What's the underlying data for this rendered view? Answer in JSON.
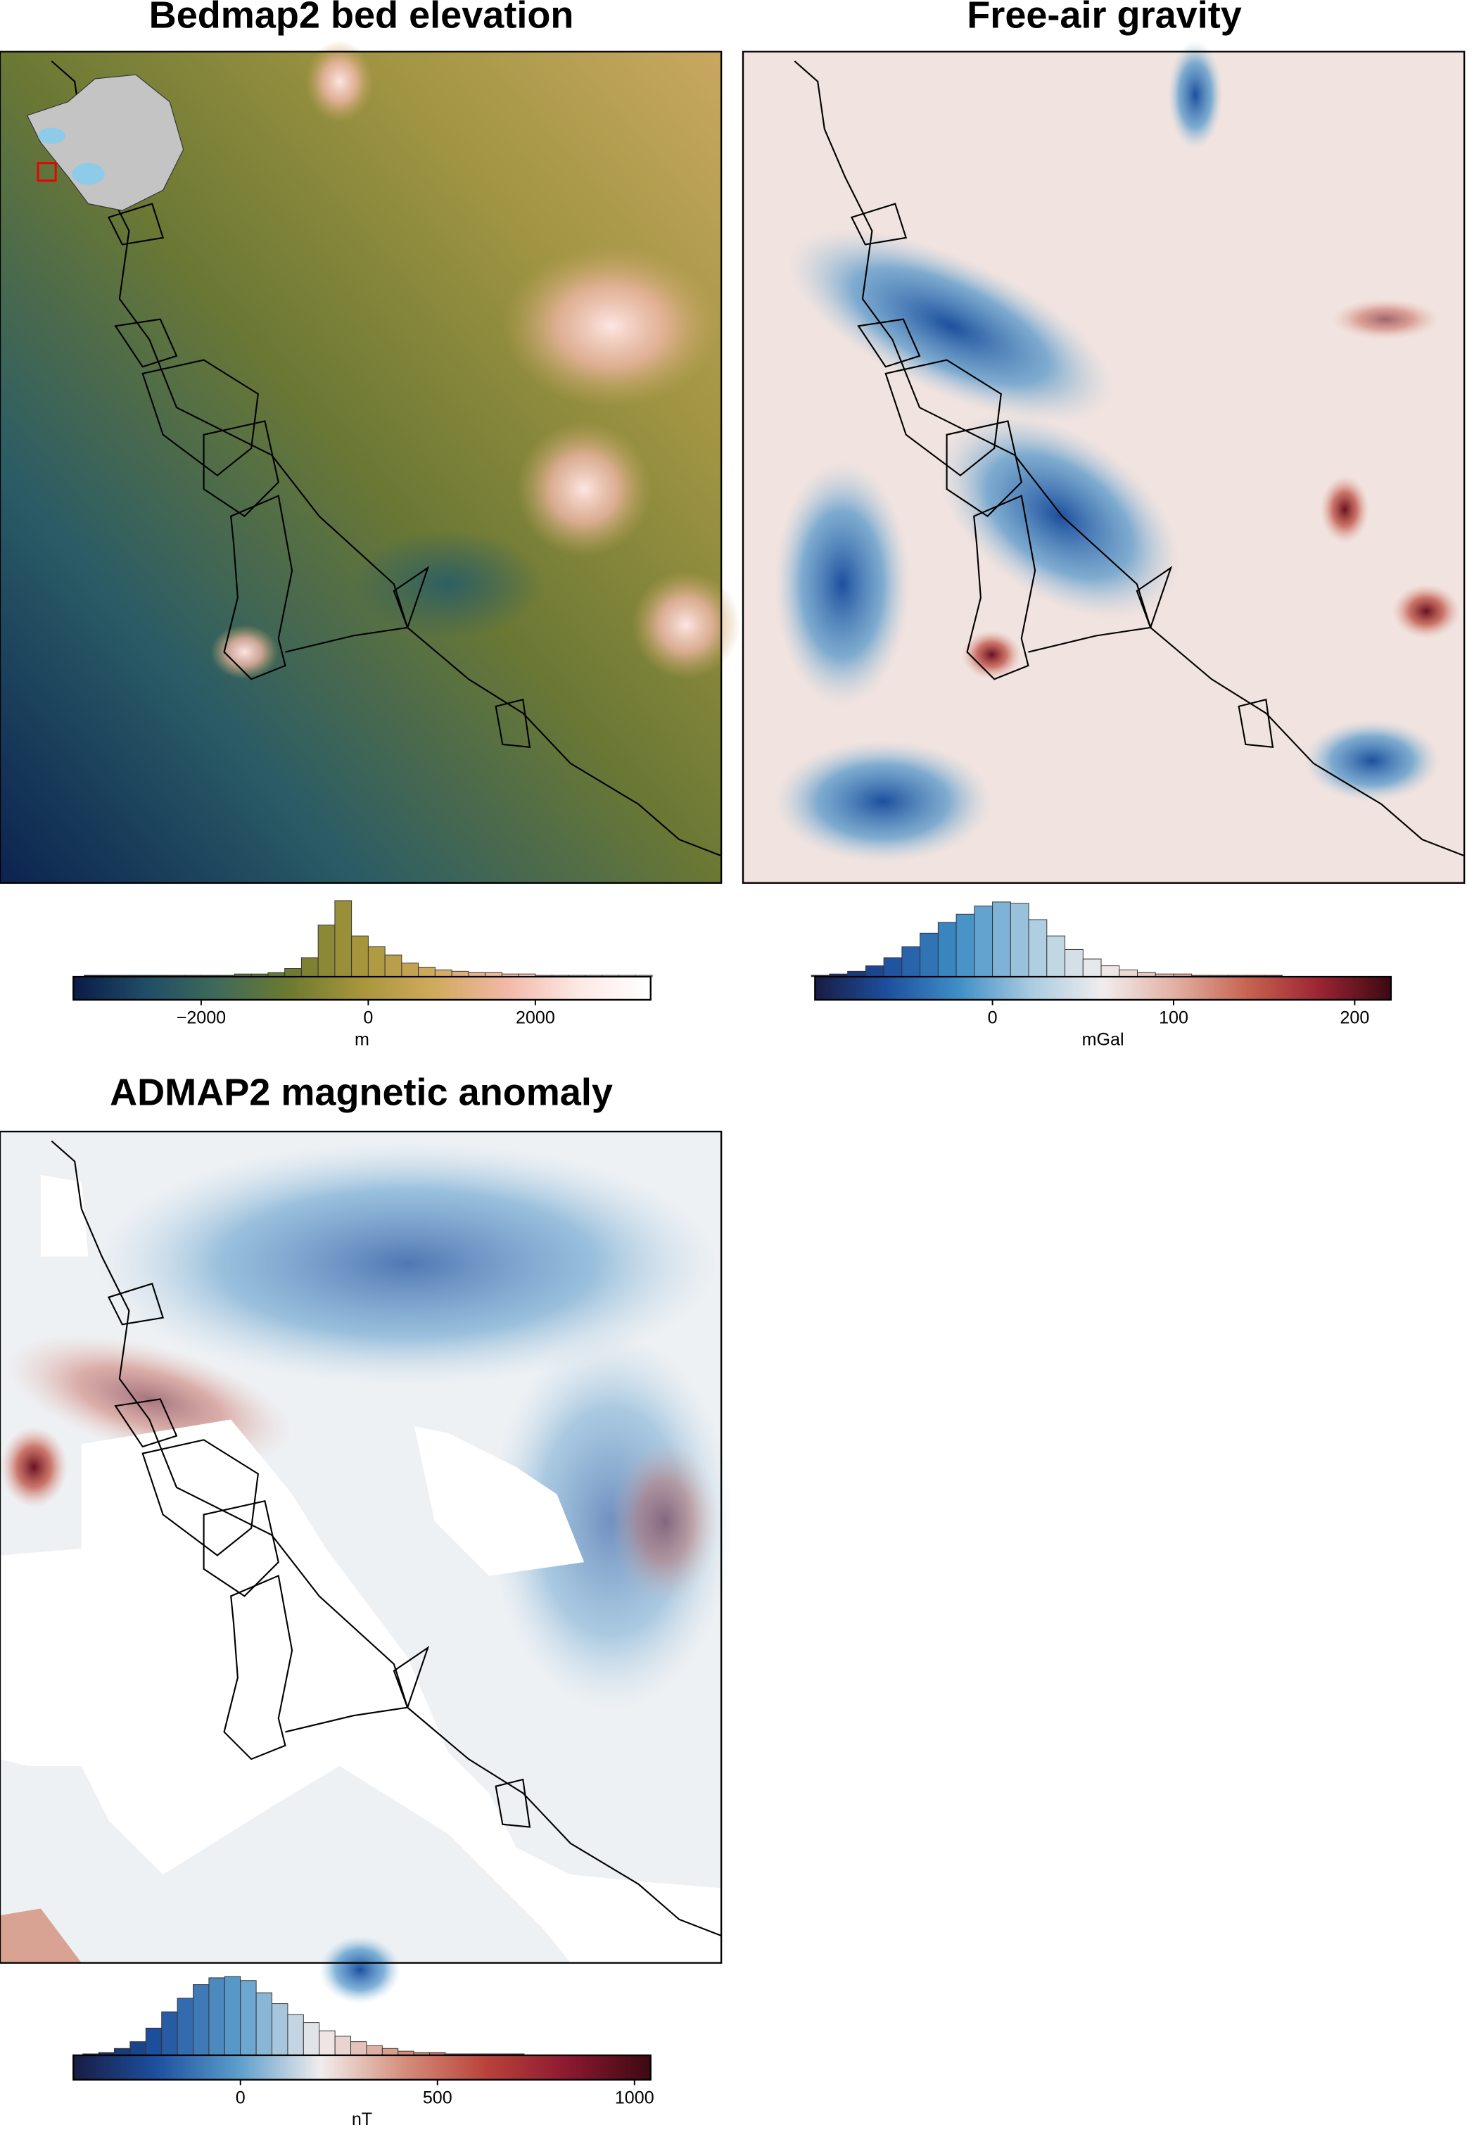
{
  "chart_data": [
    {
      "type": "map",
      "title": "Bedmap2 bed elevation",
      "colorbar": {
        "label": "m",
        "xlim": [
          -3530,
          3380
        ],
        "xticks": [
          {
            "value": -2000,
            "label": "−2000"
          },
          0,
          2000
        ],
        "colors": [
          "#0a1b47",
          "#1f4d66",
          "#3f6a5a",
          "#6d7a30",
          "#a8963c",
          "#d0aa5c",
          "#f2b8a6",
          "#fde9e6",
          "#ffffff"
        ]
      },
      "histogram": {
        "bins": [
          -3400,
          -3200,
          -3000,
          -2800,
          -2600,
          -2400,
          -2200,
          -2000,
          -1800,
          -1600,
          -1400,
          -1200,
          -1000,
          -800,
          -600,
          -400,
          -200,
          0,
          200,
          400,
          600,
          800,
          1000,
          1200,
          1400,
          1600,
          1800,
          2000,
          2200,
          2400,
          2600,
          2800,
          3000,
          3200,
          3400
        ],
        "counts": [
          1,
          1,
          1,
          1,
          1,
          1,
          1,
          1,
          1,
          2,
          2,
          3,
          6,
          14,
          38,
          56,
          30,
          22,
          16,
          10,
          7,
          5,
          4,
          3,
          3,
          2,
          2,
          1,
          1,
          1,
          1,
          1,
          1,
          1
        ]
      }
    },
    {
      "type": "map",
      "title": "Free-air gravity",
      "colorbar": {
        "label": "mGal",
        "xlim": [
          -98,
          220
        ],
        "xticks": [
          0,
          100,
          200
        ],
        "colors": [
          "#181c43",
          "#1d4f9e",
          "#3f8fc7",
          "#a9cbe0",
          "#f1eded",
          "#e2b0a3",
          "#c76450",
          "#9c2433",
          "#3c0912"
        ]
      },
      "histogram": {
        "bins": [
          -100,
          -90,
          -80,
          -70,
          -60,
          -50,
          -40,
          -30,
          -20,
          -10,
          0,
          10,
          20,
          30,
          40,
          50,
          60,
          70,
          80,
          90,
          100,
          110,
          120,
          130,
          140,
          150,
          160,
          170,
          180,
          190,
          200,
          210,
          220
        ],
        "counts": [
          1,
          2,
          4,
          8,
          14,
          22,
          32,
          40,
          46,
          52,
          55,
          54,
          42,
          30,
          20,
          13,
          8,
          5,
          3,
          2,
          2,
          1,
          1,
          1,
          1,
          1,
          0,
          0,
          0,
          0,
          0,
          0
        ]
      }
    },
    {
      "type": "map",
      "title": "ADMAP2 magnetic anomaly",
      "colorbar": {
        "label": "nT",
        "xlim": [
          -424,
          1041
        ],
        "xticks": [
          0,
          500,
          1000
        ],
        "colors": [
          "#181c43",
          "#1d4f9e",
          "#5b9dcb",
          "#f1eded",
          "#d48f7c",
          "#b9433a",
          "#8c1830",
          "#3c0912"
        ]
      },
      "histogram": {
        "bins": [
          -400,
          -360,
          -320,
          -280,
          -240,
          -200,
          -160,
          -120,
          -80,
          -40,
          0,
          40,
          80,
          120,
          160,
          200,
          240,
          280,
          320,
          360,
          400,
          440,
          480,
          520,
          560,
          600,
          640,
          680,
          720,
          760,
          800,
          840,
          880,
          920,
          960,
          1000,
          1040
        ],
        "counts": [
          1,
          2,
          5,
          10,
          20,
          32,
          42,
          52,
          57,
          58,
          55,
          46,
          38,
          30,
          24,
          18,
          14,
          10,
          7,
          5,
          3,
          2,
          2,
          1,
          1,
          1,
          1,
          1,
          0,
          0,
          0,
          0,
          0,
          0,
          0,
          0
        ]
      }
    }
  ]
}
